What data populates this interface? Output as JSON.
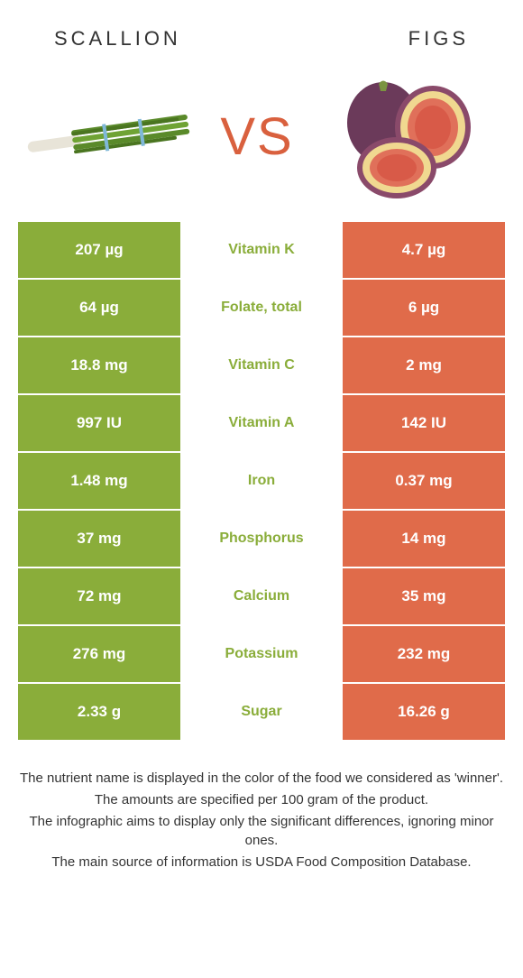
{
  "header": {
    "left": "SCALLION",
    "right": "FIGS"
  },
  "vs": "VS",
  "colors": {
    "left_bg": "#8aad3a",
    "right_bg": "#e06b4a",
    "left_nutrient": "#8aad3a",
    "right_nutrient": "#e06b4a",
    "vs": "#d9603e"
  },
  "rows": [
    {
      "left": "207 µg",
      "nutrient": "Vitamin K",
      "right": "4.7 µg",
      "winner": "left"
    },
    {
      "left": "64 µg",
      "nutrient": "Folate, total",
      "right": "6 µg",
      "winner": "left"
    },
    {
      "left": "18.8 mg",
      "nutrient": "Vitamin C",
      "right": "2 mg",
      "winner": "left"
    },
    {
      "left": "997 IU",
      "nutrient": "Vitamin A",
      "right": "142 IU",
      "winner": "left"
    },
    {
      "left": "1.48 mg",
      "nutrient": "Iron",
      "right": "0.37 mg",
      "winner": "left"
    },
    {
      "left": "37 mg",
      "nutrient": "Phosphorus",
      "right": "14 mg",
      "winner": "left"
    },
    {
      "left": "72 mg",
      "nutrient": "Calcium",
      "right": "35 mg",
      "winner": "left"
    },
    {
      "left": "276 mg",
      "nutrient": "Potassium",
      "right": "232 mg",
      "winner": "left"
    },
    {
      "left": "2.33 g",
      "nutrient": "Sugar",
      "right": "16.26 g",
      "winner": "left"
    }
  ],
  "footer": [
    "The nutrient name is displayed in the color of the food we considered as 'winner'.",
    "The amounts are specified per 100 gram of the product.",
    "The infographic aims to display only the significant differences, ignoring minor ones.",
    "The main source of information is USDA Food Composition Database."
  ]
}
